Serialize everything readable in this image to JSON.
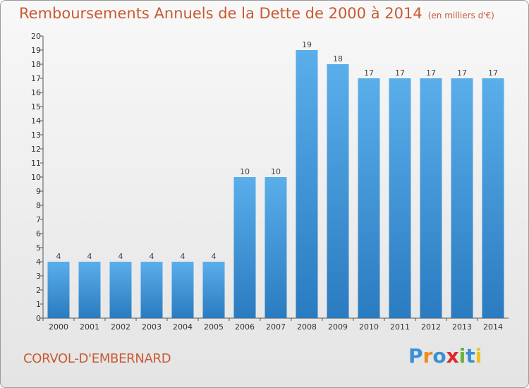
{
  "title": "Remboursements Annuels de la Dette de 2000 à 2014",
  "unit": "(en milliers d'€)",
  "commune": "CORVOL-D'EMBERNARD",
  "logo": {
    "letters": [
      "P",
      "r",
      "o",
      "x",
      "i",
      "t",
      "i"
    ],
    "colors": [
      "#3a8fd6",
      "#f08a1c",
      "#3a8fd6",
      "#e0282a",
      "#6ab23c",
      "#3a8fd6",
      "#f0c020"
    ]
  },
  "colors": {
    "bar_light": "#5aaeea",
    "bar_dark": "#2a7bc0",
    "title": "#c85a32"
  },
  "chart_data": {
    "type": "bar",
    "categories": [
      "2000",
      "2001",
      "2002",
      "2003",
      "2004",
      "2005",
      "2006",
      "2007",
      "2008",
      "2009",
      "2010",
      "2011",
      "2012",
      "2013",
      "2014"
    ],
    "values": [
      4,
      4,
      4,
      4,
      4,
      4,
      10,
      10,
      19,
      18,
      17,
      17,
      17,
      17,
      17
    ],
    "title": "Remboursements Annuels de la Dette de 2000 à 2014",
    "xlabel": "",
    "ylabel": "",
    "ylim": [
      0,
      20
    ],
    "yticks": [
      0,
      1,
      2,
      3,
      4,
      5,
      6,
      7,
      8,
      9,
      10,
      11,
      12,
      13,
      14,
      15,
      16,
      17,
      18,
      19,
      20
    ],
    "grid": false,
    "legend": "none"
  }
}
